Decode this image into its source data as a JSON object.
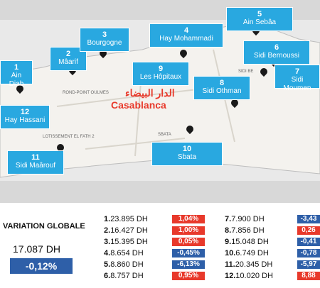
{
  "map": {
    "city_name": "Casablanca",
    "city_name_arabic": "الدار البيضاء",
    "labels": [
      "ROND-POINT OULMES",
      "LOTISSEMENT EL FATH 2",
      "SIDI BE",
      "SBATA"
    ],
    "districts": [
      {
        "num": "1",
        "name": "Ain Diab"
      },
      {
        "num": "2",
        "name": "Mâarif"
      },
      {
        "num": "3",
        "name": "Bourgogne"
      },
      {
        "num": "4",
        "name": "Hay Mohammadi"
      },
      {
        "num": "5",
        "name": "Ain Sebâa"
      },
      {
        "num": "6",
        "name": "Sidi Bernoussi"
      },
      {
        "num": "7",
        "name": "Sidi Moumen"
      },
      {
        "num": "8",
        "name": "Sidi Othman"
      },
      {
        "num": "9",
        "name": "Les Hôpitaux"
      },
      {
        "num": "10",
        "name": "Sbata"
      },
      {
        "num": "11",
        "name": "Sidi Maârouf"
      },
      {
        "num": "12",
        "name": "Hay Hassani"
      }
    ]
  },
  "summary": {
    "title": "VARIATION GLOBALE",
    "value": "17.087 DH",
    "change": "-0,12%"
  },
  "list_left": [
    {
      "rank": "1.",
      "price": "23.895 DH",
      "change": "1,04%",
      "dir": "pos"
    },
    {
      "rank": "2.",
      "price": "16.427 DH",
      "change": "1,00%",
      "dir": "pos"
    },
    {
      "rank": "3.",
      "price": "15.395 DH",
      "change": "0,05%",
      "dir": "pos"
    },
    {
      "rank": "4.",
      "price": "8.654 DH",
      "change": "-0,45%",
      "dir": "neg"
    },
    {
      "rank": "5.",
      "price": "8.860 DH",
      "change": "-6,13%",
      "dir": "neg"
    },
    {
      "rank": "6.",
      "price": "8.757 DH",
      "change": "0,95%",
      "dir": "pos"
    }
  ],
  "list_right": [
    {
      "rank": "7.",
      "price": "7.900 DH",
      "change": "-3,43",
      "dir": "neg"
    },
    {
      "rank": "8.",
      "price": "7.856 DH",
      "change": "0,26",
      "dir": "pos"
    },
    {
      "rank": "9.",
      "price": "15.048 DH",
      "change": "-0,41",
      "dir": "neg"
    },
    {
      "rank": "10.",
      "price": "6.749 DH",
      "change": "-0,78",
      "dir": "neg"
    },
    {
      "rank": "11.",
      "price": "20.345 DH",
      "change": "-5,97",
      "dir": "neg"
    },
    {
      "rank": "12.",
      "price": "10.020 DH",
      "change": "8,88",
      "dir": "pos"
    }
  ],
  "colors": {
    "callout": "#29a8e0",
    "positive": "#e8392b",
    "negative": "#2e5fa8"
  }
}
